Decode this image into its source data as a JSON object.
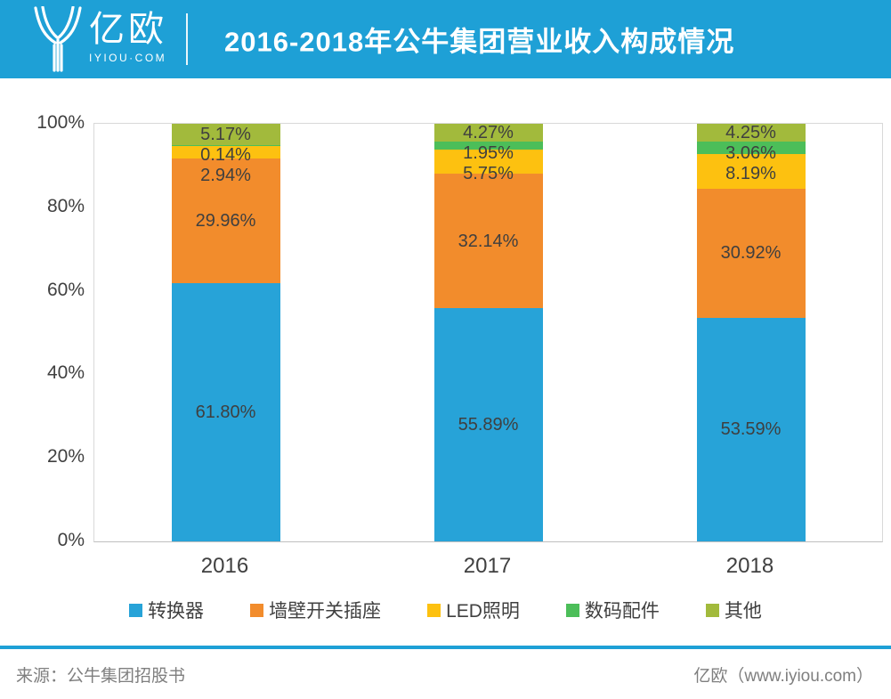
{
  "header": {
    "logo_text": "亿欧",
    "logo_subtext": "IYIOU·COM",
    "title": "2016-2018年公牛集团营业收入构成情况",
    "accent_color": "#1EA0D6"
  },
  "chart_data": {
    "type": "bar",
    "stacked": true,
    "title": "2016-2018年公牛集团营业收入构成情况",
    "categories": [
      "2016",
      "2017",
      "2018"
    ],
    "series": [
      {
        "name": "转换器",
        "color": "#27A3D8",
        "values": [
          61.8,
          55.89,
          53.59
        ]
      },
      {
        "name": "墙壁开关插座",
        "color": "#F28C2C",
        "values": [
          29.96,
          32.14,
          30.92
        ]
      },
      {
        "name": "LED照明",
        "color": "#FDC110",
        "values": [
          2.94,
          5.75,
          8.19
        ]
      },
      {
        "name": "数码配件",
        "color": "#4CBE59",
        "values": [
          0.14,
          1.95,
          3.06
        ]
      },
      {
        "name": "其他",
        "color": "#A2BA3C",
        "values": [
          5.17,
          4.27,
          4.25
        ]
      }
    ],
    "value_label_suffix": "%",
    "y_ticks_desc": [
      "100%",
      "80%",
      "60%",
      "40%",
      "20%",
      "0%"
    ],
    "ylim": [
      0,
      100
    ],
    "gridlines": false,
    "legend_position": "bottom",
    "label_color": "#3F3F3F"
  },
  "footer": {
    "source": "来源：公牛集团招股书",
    "credit": "亿欧（www.iyiou.com）"
  }
}
